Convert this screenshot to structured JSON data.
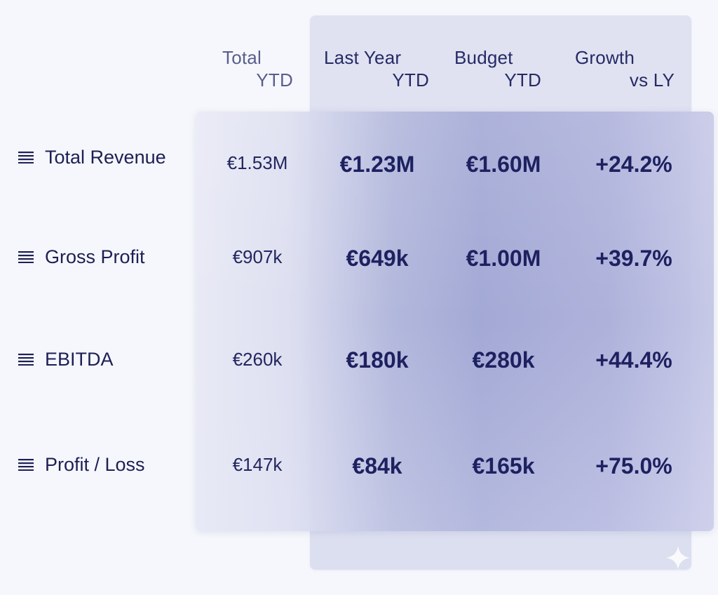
{
  "columns": {
    "total_ytd": {
      "line1": "Total",
      "line2": "YTD"
    },
    "last_year_ytd": {
      "line1": "Last Year",
      "line2": "YTD"
    },
    "budget_ytd": {
      "line1": "Budget",
      "line2": "YTD"
    },
    "growth_vs_ly": {
      "line1": "Growth",
      "line2": "vs LY"
    }
  },
  "rows": [
    {
      "label": "Total Revenue",
      "total_ytd": "€1.53M",
      "last_year_ytd": "€1.23M",
      "budget_ytd": "€1.60M",
      "growth_vs_ly": "+24.2%"
    },
    {
      "label": "Gross Profit",
      "total_ytd": "€907k",
      "last_year_ytd": "€649k",
      "budget_ytd": "€1.00M",
      "growth_vs_ly": "+39.7%"
    },
    {
      "label": "EBITDA",
      "total_ytd": "€260k",
      "last_year_ytd": "€180k",
      "budget_ytd": "€280k",
      "growth_vs_ly": "+44.4%"
    },
    {
      "label": "Profit / Loss",
      "total_ytd": "€147k",
      "last_year_ytd": "€84k",
      "budget_ytd": "€165k",
      "growth_vs_ly": "+75.0%"
    }
  ],
  "icons": {
    "row_handle": "menu-lines-icon",
    "corner": "sparkle-icon"
  },
  "colors": {
    "text_primary": "#1e2160",
    "text_muted": "#5a5e8c",
    "panel_accent": "#a0a6d4",
    "background": "#f6f7fc"
  }
}
